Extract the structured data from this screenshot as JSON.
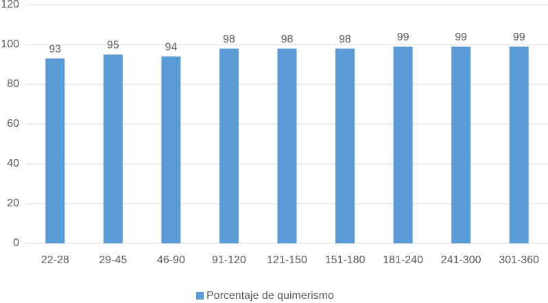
{
  "chart_data": {
    "type": "bar",
    "categories": [
      "22-28",
      "29-45",
      "46-90",
      "91-120",
      "121-150",
      "151-180",
      "181-240",
      "241-300",
      "301-360"
    ],
    "series": [
      {
        "name": "Porcentaje de quimerismo",
        "color": "#5b9bd5",
        "values": [
          93,
          95,
          94,
          98,
          98,
          98,
          99,
          99,
          99
        ]
      }
    ],
    "ylim": [
      0,
      120
    ],
    "yticks": [
      0,
      20,
      40,
      60,
      80,
      100,
      120
    ],
    "grid": true,
    "legend": "bottom"
  }
}
